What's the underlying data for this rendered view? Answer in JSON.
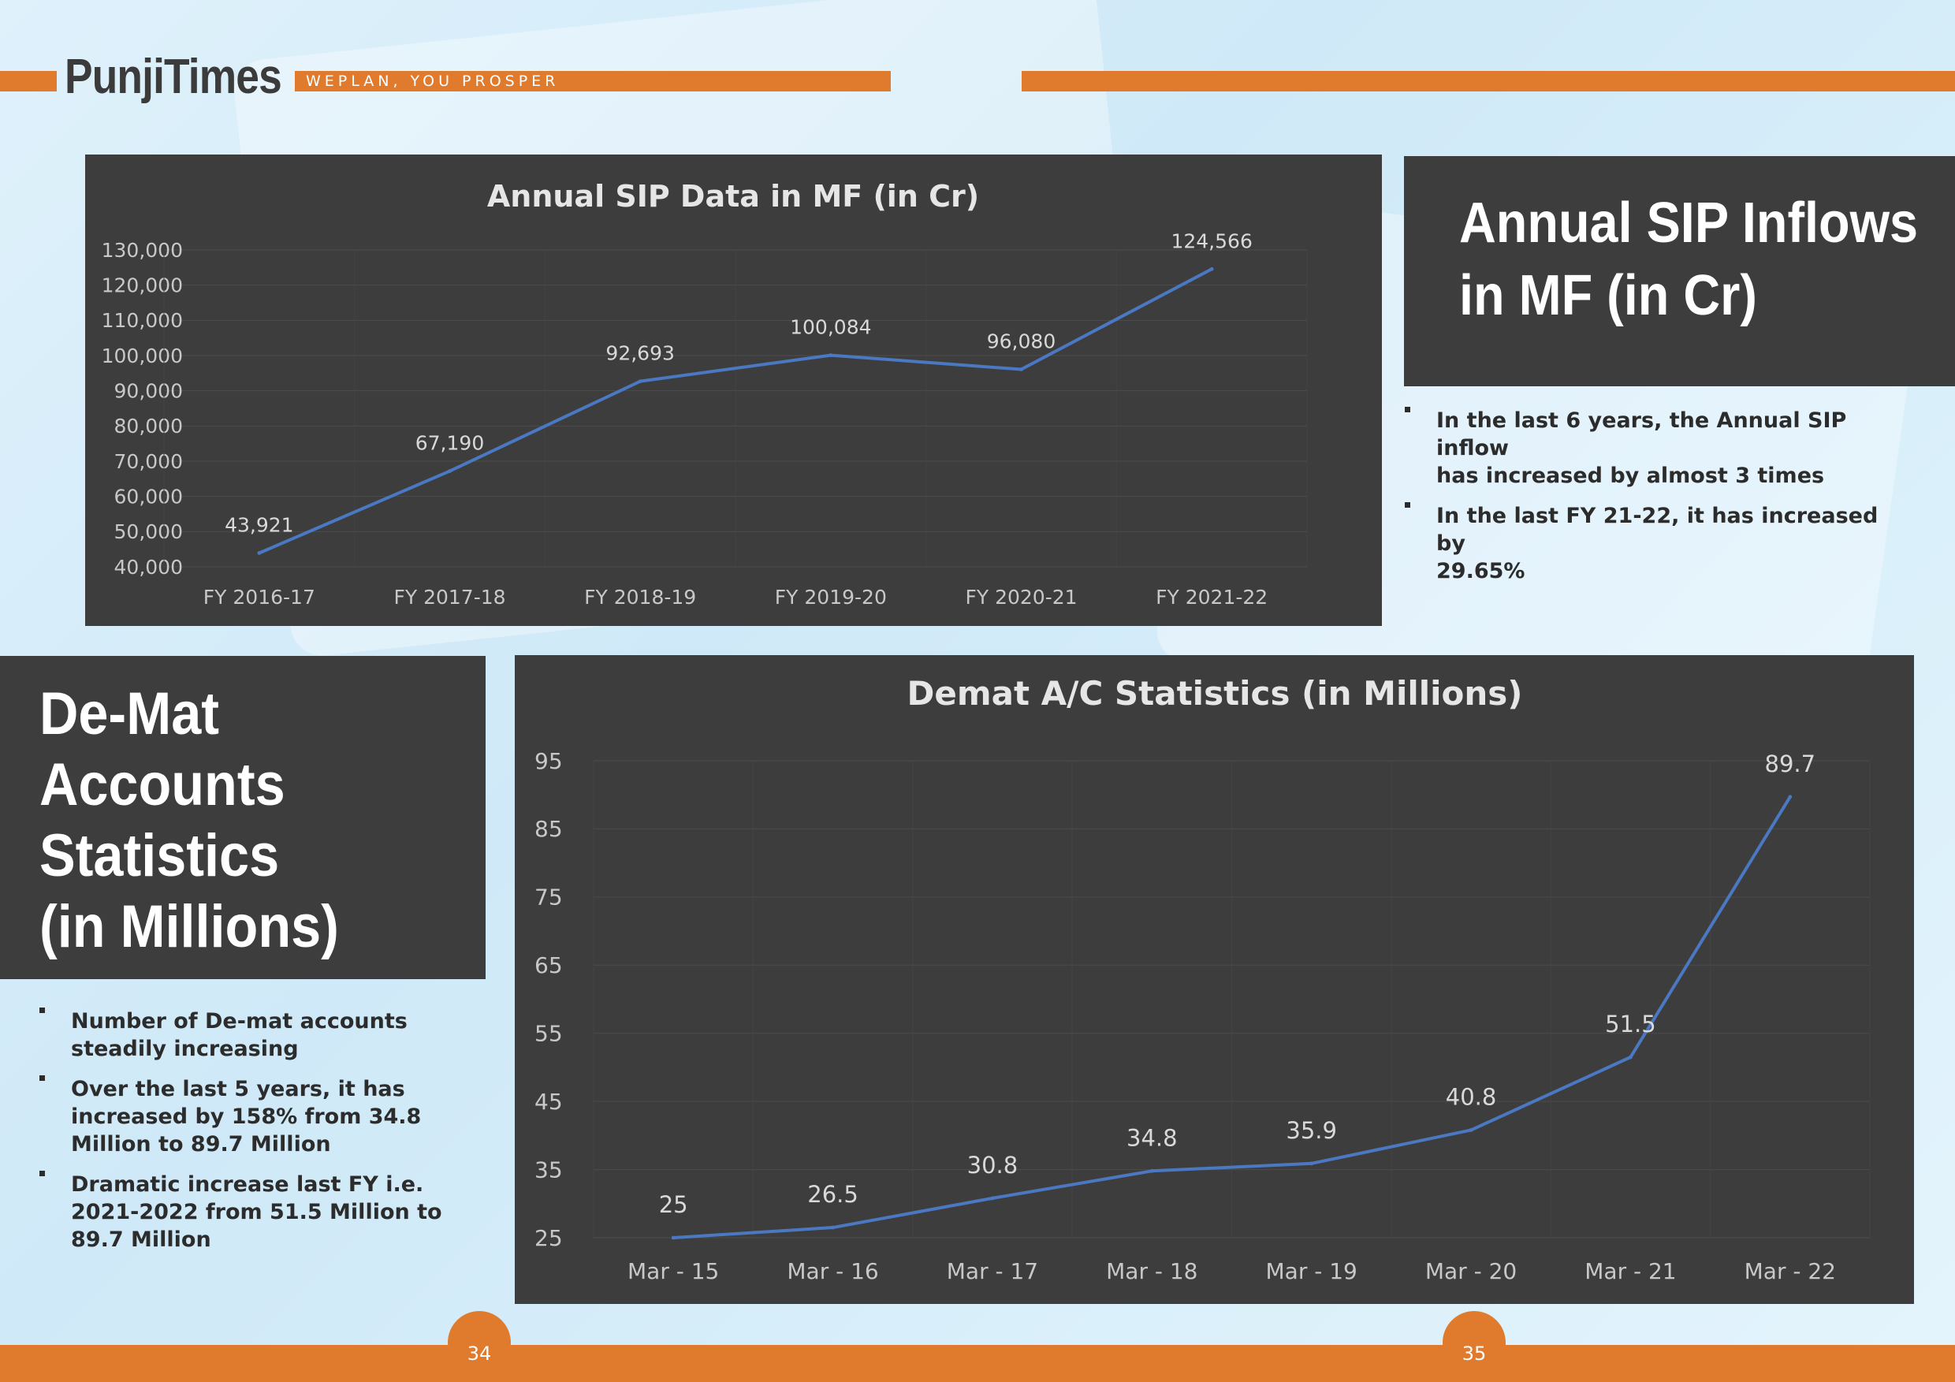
{
  "brand": {
    "name": "PunjiTimes",
    "tagline": "WEPLAN, YOU PROSPER"
  },
  "colors": {
    "accent": "#e07a2c",
    "panel": "#3d3d3d",
    "line": "#4a78c2"
  },
  "sip_section": {
    "heading_line1": "Annual SIP Inflows",
    "heading_line2": "in MF (in Cr)",
    "bullets": [
      {
        "line1": "In the last 6 years, the Annual SIP inflow",
        "line2": "has increased by almost 3 times"
      },
      {
        "line1": "In the last FY 21-22, it has increased by",
        "line2": "29.65%"
      }
    ]
  },
  "demat_section": {
    "heading_lines": [
      "De-Mat",
      "Accounts",
      "Statistics",
      "(in Millions)"
    ],
    "bullets": [
      {
        "lines": [
          "Number of De-mat accounts",
          "steadily increasing"
        ]
      },
      {
        "lines": [
          "Over the last 5 years, it has",
          "increased by 158% from 34.8",
          "Million to 89.7 Million"
        ]
      },
      {
        "lines": [
          "Dramatic increase last FY i.e.",
          "2021-2022 from 51.5 Million to",
          "89.7 Million"
        ]
      }
    ]
  },
  "pages": {
    "left": "34",
    "right": "35"
  },
  "chart_data": [
    {
      "type": "line",
      "title": "Annual SIP Data in MF (in Cr)",
      "categories": [
        "FY 2016-17",
        "FY 2017-18",
        "FY 2018-19",
        "FY 2019-20",
        "FY 2020-21",
        "FY 2021-22"
      ],
      "values": [
        43921,
        67190,
        92693,
        100084,
        96080,
        124566
      ],
      "data_labels": [
        "43,921",
        "67,190",
        "92,693",
        "100,084",
        "96,080",
        "124,566"
      ],
      "y_ticks": [
        "40,000",
        "50,000",
        "60,000",
        "70,000",
        "80,000",
        "90,000",
        "100,000",
        "110,000",
        "120,000",
        "130,000"
      ],
      "ylim": [
        40000,
        130000
      ],
      "grid": true,
      "legend": "none"
    },
    {
      "type": "line",
      "title": "Demat A/C Statistics (in Millions)",
      "categories": [
        "Mar - 15",
        "Mar - 16",
        "Mar - 17",
        "Mar - 18",
        "Mar - 19",
        "Mar - 20",
        "Mar - 21",
        "Mar - 22"
      ],
      "values": [
        25,
        26.5,
        30.8,
        34.8,
        35.9,
        40.8,
        51.5,
        89.7
      ],
      "data_labels": [
        "25",
        "26.5",
        "30.8",
        "34.8",
        "35.9",
        "40.8",
        "51.5",
        "89.7"
      ],
      "y_ticks": [
        "25",
        "35",
        "45",
        "55",
        "65",
        "75",
        "85",
        "95"
      ],
      "ylim": [
        25,
        95
      ],
      "grid": true,
      "legend": "none"
    }
  ]
}
